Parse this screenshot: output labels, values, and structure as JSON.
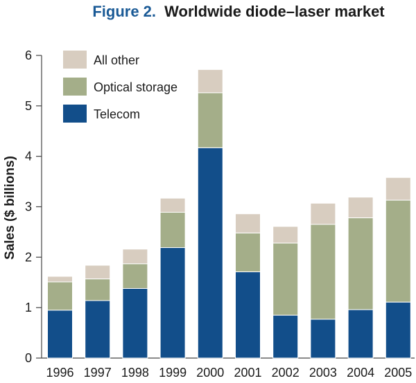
{
  "chart_data": {
    "type": "bar",
    "stacked": true,
    "title_prefix": "Figure 2.",
    "title": "Worldwide diode–laser market",
    "xlabel": "",
    "ylabel": "Sales ($ billions)",
    "ylim": [
      0,
      6
    ],
    "yticks": [
      "0",
      "1",
      "2",
      "3",
      "4",
      "5",
      "6"
    ],
    "grid": false,
    "legend_position": "top-left",
    "categories": [
      "1996",
      "1997",
      "1998",
      "1999",
      "2000",
      "2001",
      "2002",
      "2003",
      "2004",
      "2005"
    ],
    "series": [
      {
        "name": "Telecom",
        "color": "#124e8a",
        "values": [
          0.95,
          1.14,
          1.38,
          2.19,
          4.17,
          1.71,
          0.85,
          0.77,
          0.96,
          1.11
        ]
      },
      {
        "name": "Optical storage",
        "color": "#a4ae89",
        "values": [
          0.56,
          0.43,
          0.49,
          0.7,
          1.09,
          0.77,
          1.43,
          1.88,
          1.82,
          2.02
        ]
      },
      {
        "name": "All other",
        "color": "#d8cdc0",
        "values": [
          0.11,
          0.27,
          0.29,
          0.28,
          0.46,
          0.38,
          0.33,
          0.42,
          0.41,
          0.45
        ]
      }
    ],
    "legend_order": [
      "All other",
      "Optical storage",
      "Telecom"
    ]
  }
}
